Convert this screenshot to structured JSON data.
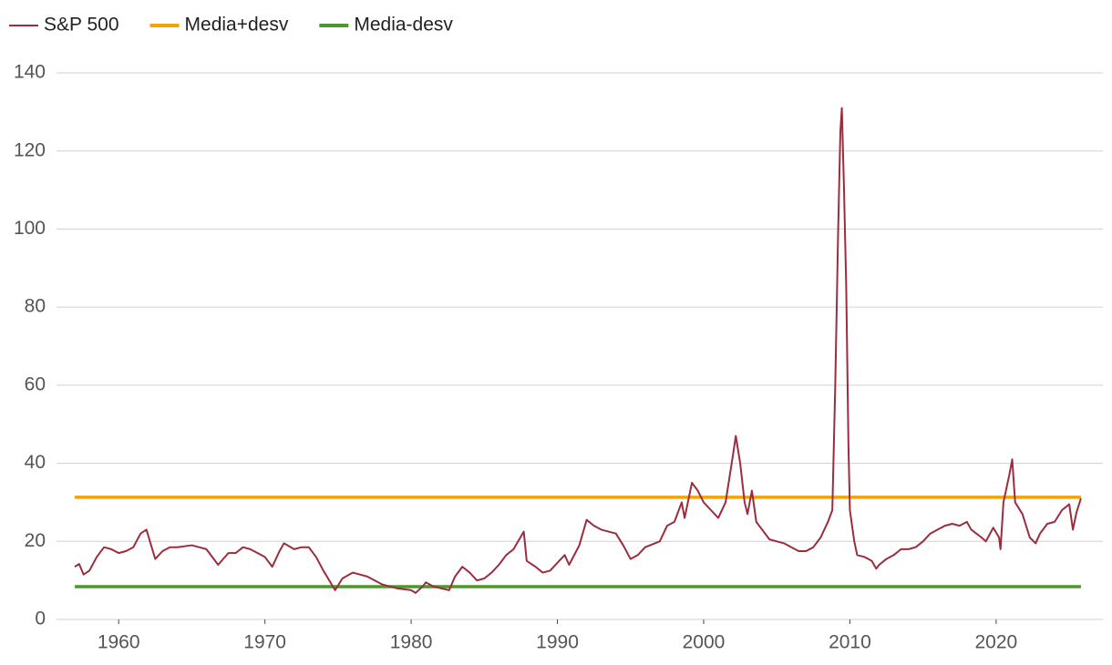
{
  "chart_data": {
    "type": "line",
    "xlim": [
      1955.75,
      2027.3
    ],
    "xticks": [
      1960,
      1970,
      1980,
      1990,
      2000,
      2010,
      2020
    ],
    "ylim": [
      0,
      140
    ],
    "yticks": [
      0,
      20,
      40,
      60,
      80,
      100,
      120,
      140
    ],
    "grid": true,
    "legend": "top-left",
    "series": [
      {
        "name": "S&P 500",
        "color": "#9b2d3e",
        "x": [
          1957.0,
          1957.3,
          1957.6,
          1958.0,
          1958.5,
          1959.0,
          1959.5,
          1960.0,
          1960.5,
          1961.0,
          1961.5,
          1961.9,
          1962.3,
          1962.5,
          1963.0,
          1963.5,
          1964.0,
          1965.0,
          1965.5,
          1966.0,
          1966.8,
          1967.5,
          1968.0,
          1968.5,
          1969.0,
          1969.5,
          1970.0,
          1970.5,
          1971.0,
          1971.3,
          1972.0,
          1972.5,
          1973.0,
          1973.5,
          1974.0,
          1974.8,
          1975.3,
          1976.0,
          1976.5,
          1977.0,
          1978.0,
          1978.5,
          1979.0,
          1980.0,
          1980.3,
          1980.8,
          1981.0,
          1981.5,
          1982.0,
          1982.6,
          1983.0,
          1983.5,
          1984.0,
          1984.5,
          1985.0,
          1985.5,
          1986.0,
          1986.5,
          1987.0,
          1987.7,
          1987.9,
          1988.5,
          1989.0,
          1989.5,
          1990.0,
          1990.5,
          1990.8,
          1991.5,
          1992.0,
          1992.5,
          1993.0,
          1994.0,
          1994.5,
          1995.0,
          1995.5,
          1996.0,
          1997.0,
          1997.5,
          1998.0,
          1998.5,
          1998.7,
          1999.2,
          1999.6,
          2000.0,
          2000.5,
          2001.0,
          2001.5,
          2002.0,
          2002.2,
          2002.5,
          2002.8,
          2003.0,
          2003.3,
          2003.6,
          2004.0,
          2004.5,
          2005.0,
          2005.5,
          2006.0,
          2006.5,
          2007.0,
          2007.5,
          2008.0,
          2008.5,
          2008.8,
          2009.0,
          2009.2,
          2009.35,
          2009.45,
          2009.6,
          2009.75,
          2009.9,
          2010.0,
          2010.3,
          2010.5,
          2011.0,
          2011.5,
          2011.8,
          2012.0,
          2012.5,
          2013.0,
          2013.5,
          2014.0,
          2014.5,
          2015.0,
          2015.5,
          2016.0,
          2016.5,
          2017.0,
          2017.5,
          2018.0,
          2018.3,
          2019.0,
          2019.3,
          2019.8,
          2020.2,
          2020.3,
          2020.5,
          2020.9,
          2021.1,
          2021.3,
          2021.8,
          2022.3,
          2022.7,
          2023.0,
          2023.5,
          2024.0,
          2024.5,
          2025.0,
          2025.25,
          2025.5,
          2025.8
        ],
        "values": [
          13.5,
          14.2,
          11.5,
          12.5,
          16,
          18.5,
          18,
          17,
          17.5,
          18.5,
          22,
          23,
          18,
          15.5,
          17.5,
          18.5,
          18.5,
          19,
          18.5,
          18,
          14,
          17,
          17,
          18.5,
          18,
          17,
          16,
          13.5,
          17.5,
          19.5,
          18,
          18.5,
          18.5,
          16,
          12.5,
          7.5,
          10.5,
          12,
          11.5,
          11,
          9,
          8.5,
          8,
          7.5,
          6.8,
          8.5,
          9.5,
          8.5,
          8,
          7.5,
          11,
          13.5,
          12,
          10,
          10.5,
          12,
          14,
          16.5,
          18,
          22.5,
          15,
          13.5,
          12,
          12.5,
          14.5,
          16.5,
          14,
          19,
          25.5,
          24,
          23,
          22,
          19,
          15.5,
          16.5,
          18.5,
          20,
          24,
          25,
          30,
          26,
          35,
          33,
          30,
          28,
          26,
          30,
          42,
          47,
          40,
          30,
          27,
          33,
          25,
          23,
          20.5,
          20,
          19.5,
          18.5,
          17.5,
          17.5,
          18.5,
          21,
          25,
          28,
          60,
          100,
          125,
          131,
          110,
          85,
          45,
          28,
          20,
          16.5,
          16,
          15,
          13,
          14,
          15.5,
          16.5,
          18,
          18,
          18.5,
          20,
          22,
          23,
          24,
          24.5,
          24,
          25,
          23,
          21,
          20,
          23.5,
          21,
          18,
          30,
          37,
          41,
          30,
          27,
          21,
          19.5,
          22,
          24.5,
          25,
          28,
          29.5,
          23,
          27.5,
          31
        ]
      },
      {
        "name": "Media+desv",
        "color": "#f4a300",
        "x": [
          1957.0,
          2025.8
        ],
        "values": [
          31.3,
          31.3
        ]
      },
      {
        "name": "Media-desv",
        "color": "#4a9a2a",
        "x": [
          1957.0,
          2025.8
        ],
        "values": [
          8.4,
          8.4
        ]
      }
    ]
  }
}
